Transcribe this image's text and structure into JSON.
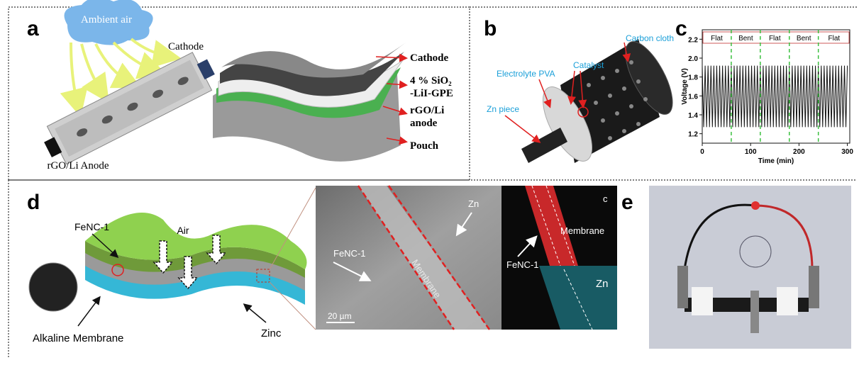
{
  "panels": {
    "a": {
      "label": "a",
      "cloud": "Ambient air",
      "cathode": "Cathode",
      "anode": "rGO/Li Anode",
      "layers": [
        "Cathode",
        "4 % SiO₂",
        "-LiI-GPE",
        "rGO/Li",
        "anode",
        "Pouch"
      ]
    },
    "b": {
      "label": "b",
      "carbon_cloth": "Carbon cloth",
      "catalyst": "Catalyst",
      "electrolyte": "Electrolyte PVA",
      "zn_piece": "Zn piece"
    },
    "c": {
      "label": "c"
    },
    "d": {
      "label": "d",
      "fenc": "FeNC-1",
      "air": "Air",
      "membrane": "Alkaline Membrane",
      "zinc": "Zinc",
      "sem": {
        "zn": "Zn",
        "fenc": "FeNC-1",
        "membrane": "Membrane",
        "scale": "20 µm"
      },
      "map": {
        "label": "c",
        "membrane": "Membrane",
        "fenc": "FeNC-1",
        "zn": "Zn"
      }
    },
    "e": {
      "label": "e"
    }
  },
  "chart_data": {
    "type": "line",
    "xlabel": "Time (min)",
    "ylabel": "Voltage (V)",
    "xlim": [
      0,
      305
    ],
    "ylim": [
      1.1,
      2.3
    ],
    "xticks": [
      0,
      100,
      200,
      300
    ],
    "yticks": [
      1.2,
      1.4,
      1.6,
      1.8,
      {
        "value": 2,
        "label": "2.0"
      },
      2.2
    ],
    "dividers": [
      60,
      120,
      180,
      240
    ],
    "segments": [
      "Flat",
      "Bent",
      "Flat",
      "Bent",
      "Flat"
    ],
    "x": [
      0,
      3,
      6,
      9,
      12,
      15,
      18,
      21,
      24,
      27,
      30,
      33,
      36,
      39,
      42,
      45,
      48,
      51,
      54,
      57,
      60,
      63,
      66,
      69,
      72,
      75,
      78,
      81,
      84,
      87,
      90,
      93,
      96,
      99,
      102,
      105,
      108,
      111,
      114,
      117,
      120,
      123,
      126,
      129,
      132,
      135,
      138,
      141,
      144,
      147,
      150,
      153,
      156,
      159,
      162,
      165,
      168,
      171,
      174,
      177,
      180,
      183,
      186,
      189,
      192,
      195,
      198,
      201,
      204,
      207,
      210,
      213,
      216,
      219,
      222,
      225,
      228,
      231,
      234,
      237,
      240,
      243,
      246,
      249,
      252,
      255,
      258,
      261,
      264,
      267,
      270,
      273,
      276,
      279,
      282,
      285,
      288,
      291,
      294,
      297,
      300
    ],
    "series": [
      {
        "name": "Voltage",
        "color": "#111111",
        "values": [
          1.92,
          1.27,
          1.92,
          1.27,
          1.92,
          1.27,
          1.92,
          1.27,
          1.92,
          1.27,
          1.92,
          1.27,
          1.92,
          1.27,
          1.92,
          1.27,
          1.92,
          1.27,
          1.92,
          1.27,
          1.92,
          1.27,
          1.92,
          1.27,
          1.92,
          1.27,
          1.92,
          1.27,
          1.92,
          1.27,
          1.92,
          1.27,
          1.92,
          1.27,
          1.92,
          1.27,
          1.92,
          1.27,
          1.92,
          1.27,
          1.92,
          1.27,
          1.92,
          1.27,
          1.92,
          1.27,
          1.92,
          1.27,
          1.92,
          1.27,
          1.92,
          1.27,
          1.92,
          1.27,
          1.92,
          1.27,
          1.92,
          1.27,
          1.92,
          1.27,
          1.92,
          1.27,
          1.92,
          1.27,
          1.92,
          1.27,
          1.92,
          1.27,
          1.92,
          1.27,
          1.92,
          1.27,
          1.92,
          1.27,
          1.92,
          1.27,
          1.92,
          1.27,
          1.92,
          1.27,
          1.92,
          1.27,
          1.92,
          1.27,
          1.92,
          1.27,
          1.92,
          1.27,
          1.92,
          1.27,
          1.92,
          1.27,
          1.92,
          1.27,
          1.92,
          1.27,
          1.92,
          1.27,
          1.92,
          1.27,
          1.92
        ]
      }
    ]
  }
}
